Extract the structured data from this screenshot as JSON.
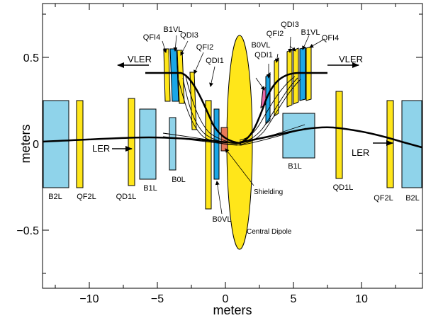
{
  "axes": {
    "xlabel": "meters",
    "ylabel": "meters",
    "xticks": [
      "−10",
      "−5",
      "0",
      "5",
      "10"
    ],
    "yticks": [
      "0.5",
      "0",
      "−0.5"
    ]
  },
  "beams": {
    "vler_left": "VLER",
    "vler_right": "VLER",
    "ler_left": "LER",
    "ler_right": "LER"
  },
  "magnets": {
    "b2l_left": "B2L",
    "qf2l_left": "QF2L",
    "qd1l_left": "QD1L",
    "b1l_left": "B1L",
    "b0l": "B0L",
    "b0vl_lower": "B0VL",
    "b1l_right": "B1L",
    "qd1l_right": "QD1L",
    "qf2l_right": "QF2L",
    "b2l_right": "B2L",
    "qfi4_left": "QFI4",
    "b1vl_left": "B1VL",
    "qdi3_left": "QDI3",
    "qfi2_left": "QFI2",
    "qdi1_left": "QDI1",
    "qdi3_right": "QDI3",
    "qfi2_right": "QFI2",
    "b1vl_right": "B1VL",
    "qfi4_right": "QFI4",
    "b0vl_upper": "B0VL",
    "qdi1_right": "QDI1"
  },
  "annotations": {
    "shielding": "Shielding",
    "central_dipole": "Central Dipole"
  },
  "colors": {
    "quad_yellow": "#ffe61a",
    "bend_blue": "#8fd3ea",
    "strong_blue": "#1aa6e6",
    "pink": "#e86aa8",
    "shield_red": "#e87a5a"
  }
}
